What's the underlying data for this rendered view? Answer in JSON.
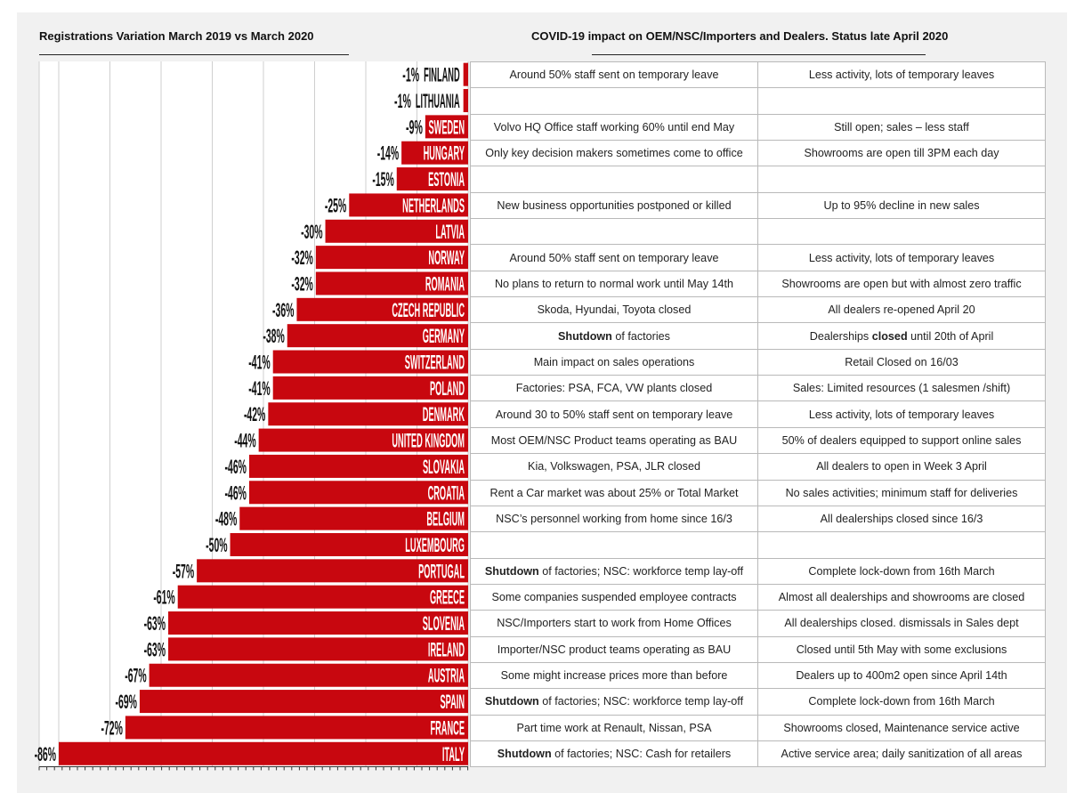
{
  "left_title": "Registrations Variation March 2019 vs March 2020",
  "right_title": "COVID-19 impact on OEM/NSC/Importers and Dealers. Status late April 2020",
  "colors": {
    "bar": "#c8070f",
    "panel": "#f1f1f1",
    "grid": "#cfcfcf"
  },
  "chart_data": {
    "type": "bar",
    "orientation": "horizontal",
    "title": "Registrations Variation March 2019 vs March 2020",
    "xlim": [
      -86,
      0
    ],
    "grid": true,
    "categories": [
      "FINLAND",
      "LITHUANIA",
      "SWEDEN",
      "HUNGARY",
      "ESTONIA",
      "NETHERLANDS",
      "LATVIA",
      "NORWAY",
      "ROMANIA",
      "CZECH REPUBLIC",
      "GERMANY",
      "SWITZERLAND",
      "POLAND",
      "DENMARK",
      "UNITED KINGDOM",
      "SLOVAKIA",
      "CROATIA",
      "BELGIUM",
      "LUXEMBOURG",
      "PORTUGAL",
      "GREECE",
      "SLOVENIA",
      "IRELAND",
      "AUSTRIA",
      "SPAIN",
      "FRANCE",
      "ITALY"
    ],
    "values": [
      -1,
      -1,
      -9,
      -14,
      -15,
      -25,
      -30,
      -32,
      -32,
      -36,
      -38,
      -41,
      -41,
      -42,
      -44,
      -46,
      -46,
      -48,
      -50,
      -57,
      -61,
      -63,
      -63,
      -67,
      -69,
      -72,
      -86
    ],
    "value_labels": [
      "-1%",
      "-1%",
      "-9%",
      "-14%",
      "-15%",
      "-25%",
      "-30%",
      "-32%",
      "-32%",
      "-36%",
      "-38%",
      "-41%",
      "-41%",
      "-42%",
      "-44%",
      "-46%",
      "-46%",
      "-48%",
      "-50%",
      "-57%",
      "-61%",
      "-63%",
      "-63%",
      "-67%",
      "-69%",
      "-72%",
      "-86%"
    ]
  },
  "table": {
    "rows": [
      [
        "Around 50% staff sent on temporary leave",
        "Less activity, lots of temporary leaves"
      ],
      [
        "",
        ""
      ],
      [
        "Volvo HQ Office staff working 60% until end May",
        "Still open; sales – less staff"
      ],
      [
        "Only key decision makers sometimes come to office",
        "Showrooms are open till 3PM each day"
      ],
      [
        "",
        ""
      ],
      [
        "New business opportunities postponed or killed",
        "Up to 95% decline in new sales"
      ],
      [
        "",
        ""
      ],
      [
        "Around 50% staff sent on temporary leave",
        "Less activity, lots of temporary leaves"
      ],
      [
        "No plans to return to normal work until May 14th",
        "Showrooms are open but with almost zero traffic"
      ],
      [
        "Skoda, Hyundai, Toyota closed",
        "All dealers re-opened April 20"
      ],
      [
        "Shutdown of factories",
        "Dealerships closed until 20th of April"
      ],
      [
        "Main impact on sales operations",
        "Retail Closed on 16/03"
      ],
      [
        "Factories: PSA, FCA, VW plants closed",
        "Sales: Limited resources (1 salesmen /shift)"
      ],
      [
        "Around 30 to 50% staff sent on temporary leave",
        "Less activity, lots of temporary leaves"
      ],
      [
        "Most OEM/NSC Product teams operating as BAU",
        "50% of dealers equipped to support online sales"
      ],
      [
        "Kia, Volkswagen, PSA, JLR closed",
        "All dealers to open in Week 3 April"
      ],
      [
        "Rent a Car market was about 25% or Total Market",
        "No sales activities; minimum staff for deliveries"
      ],
      [
        "NSC’s personnel working from home since 16/3",
        "All dealerships closed since 16/3"
      ],
      [
        "",
        ""
      ],
      [
        "Shutdown of factories; NSC: workforce temp lay-off",
        "Complete lock-down from 16th March"
      ],
      [
        "Some companies suspended employee contracts",
        "Almost all dealerships and showrooms are closed"
      ],
      [
        "NSC/Importers start to work from Home Offices",
        "All dealerships closed. dismissals in Sales dept"
      ],
      [
        "Importer/NSC product teams operating as BAU",
        "Closed until 5th May with some exclusions"
      ],
      [
        "Some might increase prices more than before",
        "Dealers up to 400m2 open since April 14th"
      ],
      [
        "Shutdown of factories; NSC: workforce temp lay-off",
        "Complete lock-down from 16th March"
      ],
      [
        "Part time work at Renault, Nissan, PSA",
        "Showrooms closed, Maintenance service active"
      ],
      [
        "Shutdown of factories; NSC: Cash for retailers",
        "Active service area; daily sanitization of all areas"
      ]
    ]
  }
}
